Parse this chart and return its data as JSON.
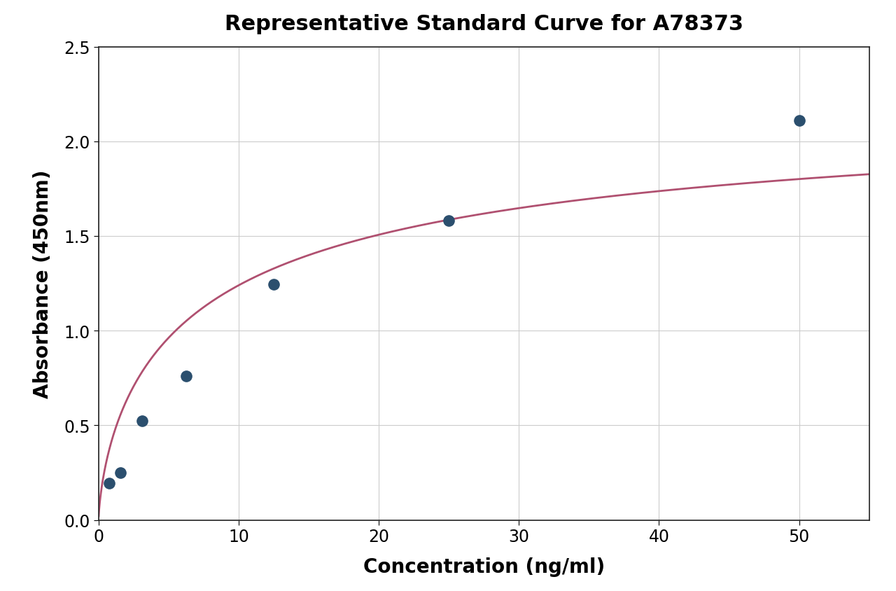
{
  "title": "Representative Standard Curve for A78373",
  "xlabel": "Concentration (ng/ml)",
  "ylabel": "Absorbance (450nm)",
  "scatter_x": [
    0.78,
    1.56,
    3.13,
    6.25,
    12.5,
    25.0,
    50.0
  ],
  "scatter_y": [
    0.195,
    0.25,
    0.525,
    0.76,
    1.245,
    1.58,
    2.11
  ],
  "scatter_color": "#2b4f6e",
  "curve_color": "#b05070",
  "xlim": [
    0,
    55
  ],
  "ylim": [
    0.0,
    2.5
  ],
  "xticks": [
    0,
    10,
    20,
    30,
    40,
    50
  ],
  "yticks": [
    0.0,
    0.5,
    1.0,
    1.5,
    2.0,
    2.5
  ],
  "title_fontsize": 22,
  "axis_label_fontsize": 20,
  "tick_fontsize": 17,
  "scatter_size": 120,
  "background_color": "#ffffff",
  "grid_color": "#cccccc",
  "line_width": 2.0,
  "fig_width": 12.8,
  "fig_height": 8.45
}
